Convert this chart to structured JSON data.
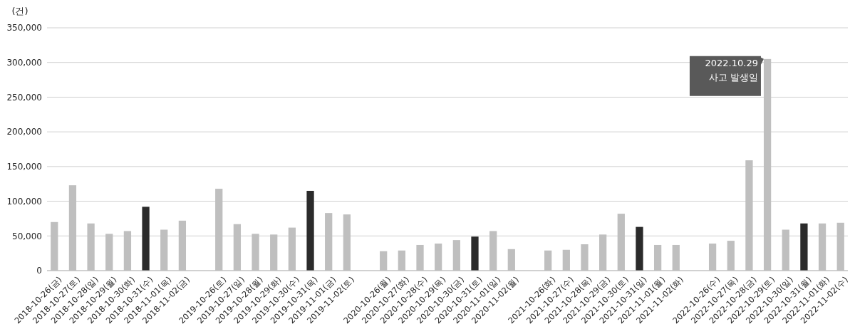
{
  "chart_data": {
    "type": "bar",
    "ylabel": "(건)",
    "categories": [
      "2018-10-26(금)",
      "2018-10-27(토)",
      "2018-10-28(일)",
      "2018-10-29(월)",
      "2018-10-30(화)",
      "2018-10-31(수)",
      "2018-11-01(목)",
      "2018-11-02(금)",
      null,
      "2019-10-26(토)",
      "2019-10-27(일)",
      "2019-10-28(월)",
      "2019-10-29(화)",
      "2019-10-30(수)",
      "2019-10-31(목)",
      "2019-11-01(금)",
      "2019-11-02(토)",
      null,
      "2020-10-26(월)",
      "2020-10-27(화)",
      "2020-10-28(수)",
      "2020-10-29(목)",
      "2020-10-30(금)",
      "2020-10-31(토)",
      "2020-11-01(일)",
      "2020-11-02(월)",
      null,
      "2021-10-26(화)",
      "2021-10-27(수)",
      "2021-10-28(목)",
      "2021-10-29(금)",
      "2021-10-30(토)",
      "2021-10-31(일)",
      "2021-11-01(월)",
      "2021-11-02(화)",
      null,
      "2022-10-26(수)",
      "2022-10-27(목)",
      "2022-10-28(금)",
      "2022-10-29(토)",
      "2022-10-30(일)",
      "2022-10-31(월)",
      "2022-11-01(화)",
      "2022-11-02(수)"
    ],
    "values": [
      70000,
      123000,
      68000,
      53000,
      57000,
      92000,
      59000,
      72000,
      null,
      118000,
      67000,
      53000,
      52000,
      62000,
      115000,
      83000,
      81000,
      null,
      28000,
      29000,
      37000,
      39000,
      44000,
      49000,
      57000,
      31000,
      null,
      29000,
      30000,
      38000,
      52000,
      82000,
      63000,
      37000,
      37000,
      null,
      39000,
      43000,
      159000,
      305000,
      59000,
      68000,
      68000,
      69000
    ],
    "colors": [
      "#bfbfbf",
      "#bfbfbf",
      "#bfbfbf",
      "#bfbfbf",
      "#bfbfbf",
      "#2b2b2b",
      "#bfbfbf",
      "#bfbfbf",
      null,
      "#bfbfbf",
      "#bfbfbf",
      "#bfbfbf",
      "#bfbfbf",
      "#bfbfbf",
      "#2b2b2b",
      "#bfbfbf",
      "#bfbfbf",
      null,
      "#bfbfbf",
      "#bfbfbf",
      "#bfbfbf",
      "#bfbfbf",
      "#bfbfbf",
      "#2b2b2b",
      "#bfbfbf",
      "#bfbfbf",
      null,
      "#bfbfbf",
      "#bfbfbf",
      "#bfbfbf",
      "#bfbfbf",
      "#bfbfbf",
      "#2b2b2b",
      "#bfbfbf",
      "#bfbfbf",
      null,
      "#bfbfbf",
      "#bfbfbf",
      "#bfbfbf",
      "#bfbfbf",
      "#bfbfbf",
      "#2b2b2b",
      "#bfbfbf",
      "#bfbfbf"
    ],
    "ylim": [
      0,
      350000
    ],
    "yticks": [
      {
        "value": 0,
        "label": "0"
      },
      {
        "value": 50000,
        "label": "50,000"
      },
      {
        "value": 100000,
        "label": "100,000"
      },
      {
        "value": 150000,
        "label": "150,000"
      },
      {
        "value": 200000,
        "label": "200,000"
      },
      {
        "value": 250000,
        "label": "250,000"
      },
      {
        "value": 300000,
        "label": "300,000"
      },
      {
        "value": 350000,
        "label": "350,000"
      }
    ],
    "grid": "y",
    "annotations": [
      {
        "text": "2022.10.29\n사고 발생일",
        "x": "2022-10-29(토)",
        "y": 305000
      }
    ]
  }
}
